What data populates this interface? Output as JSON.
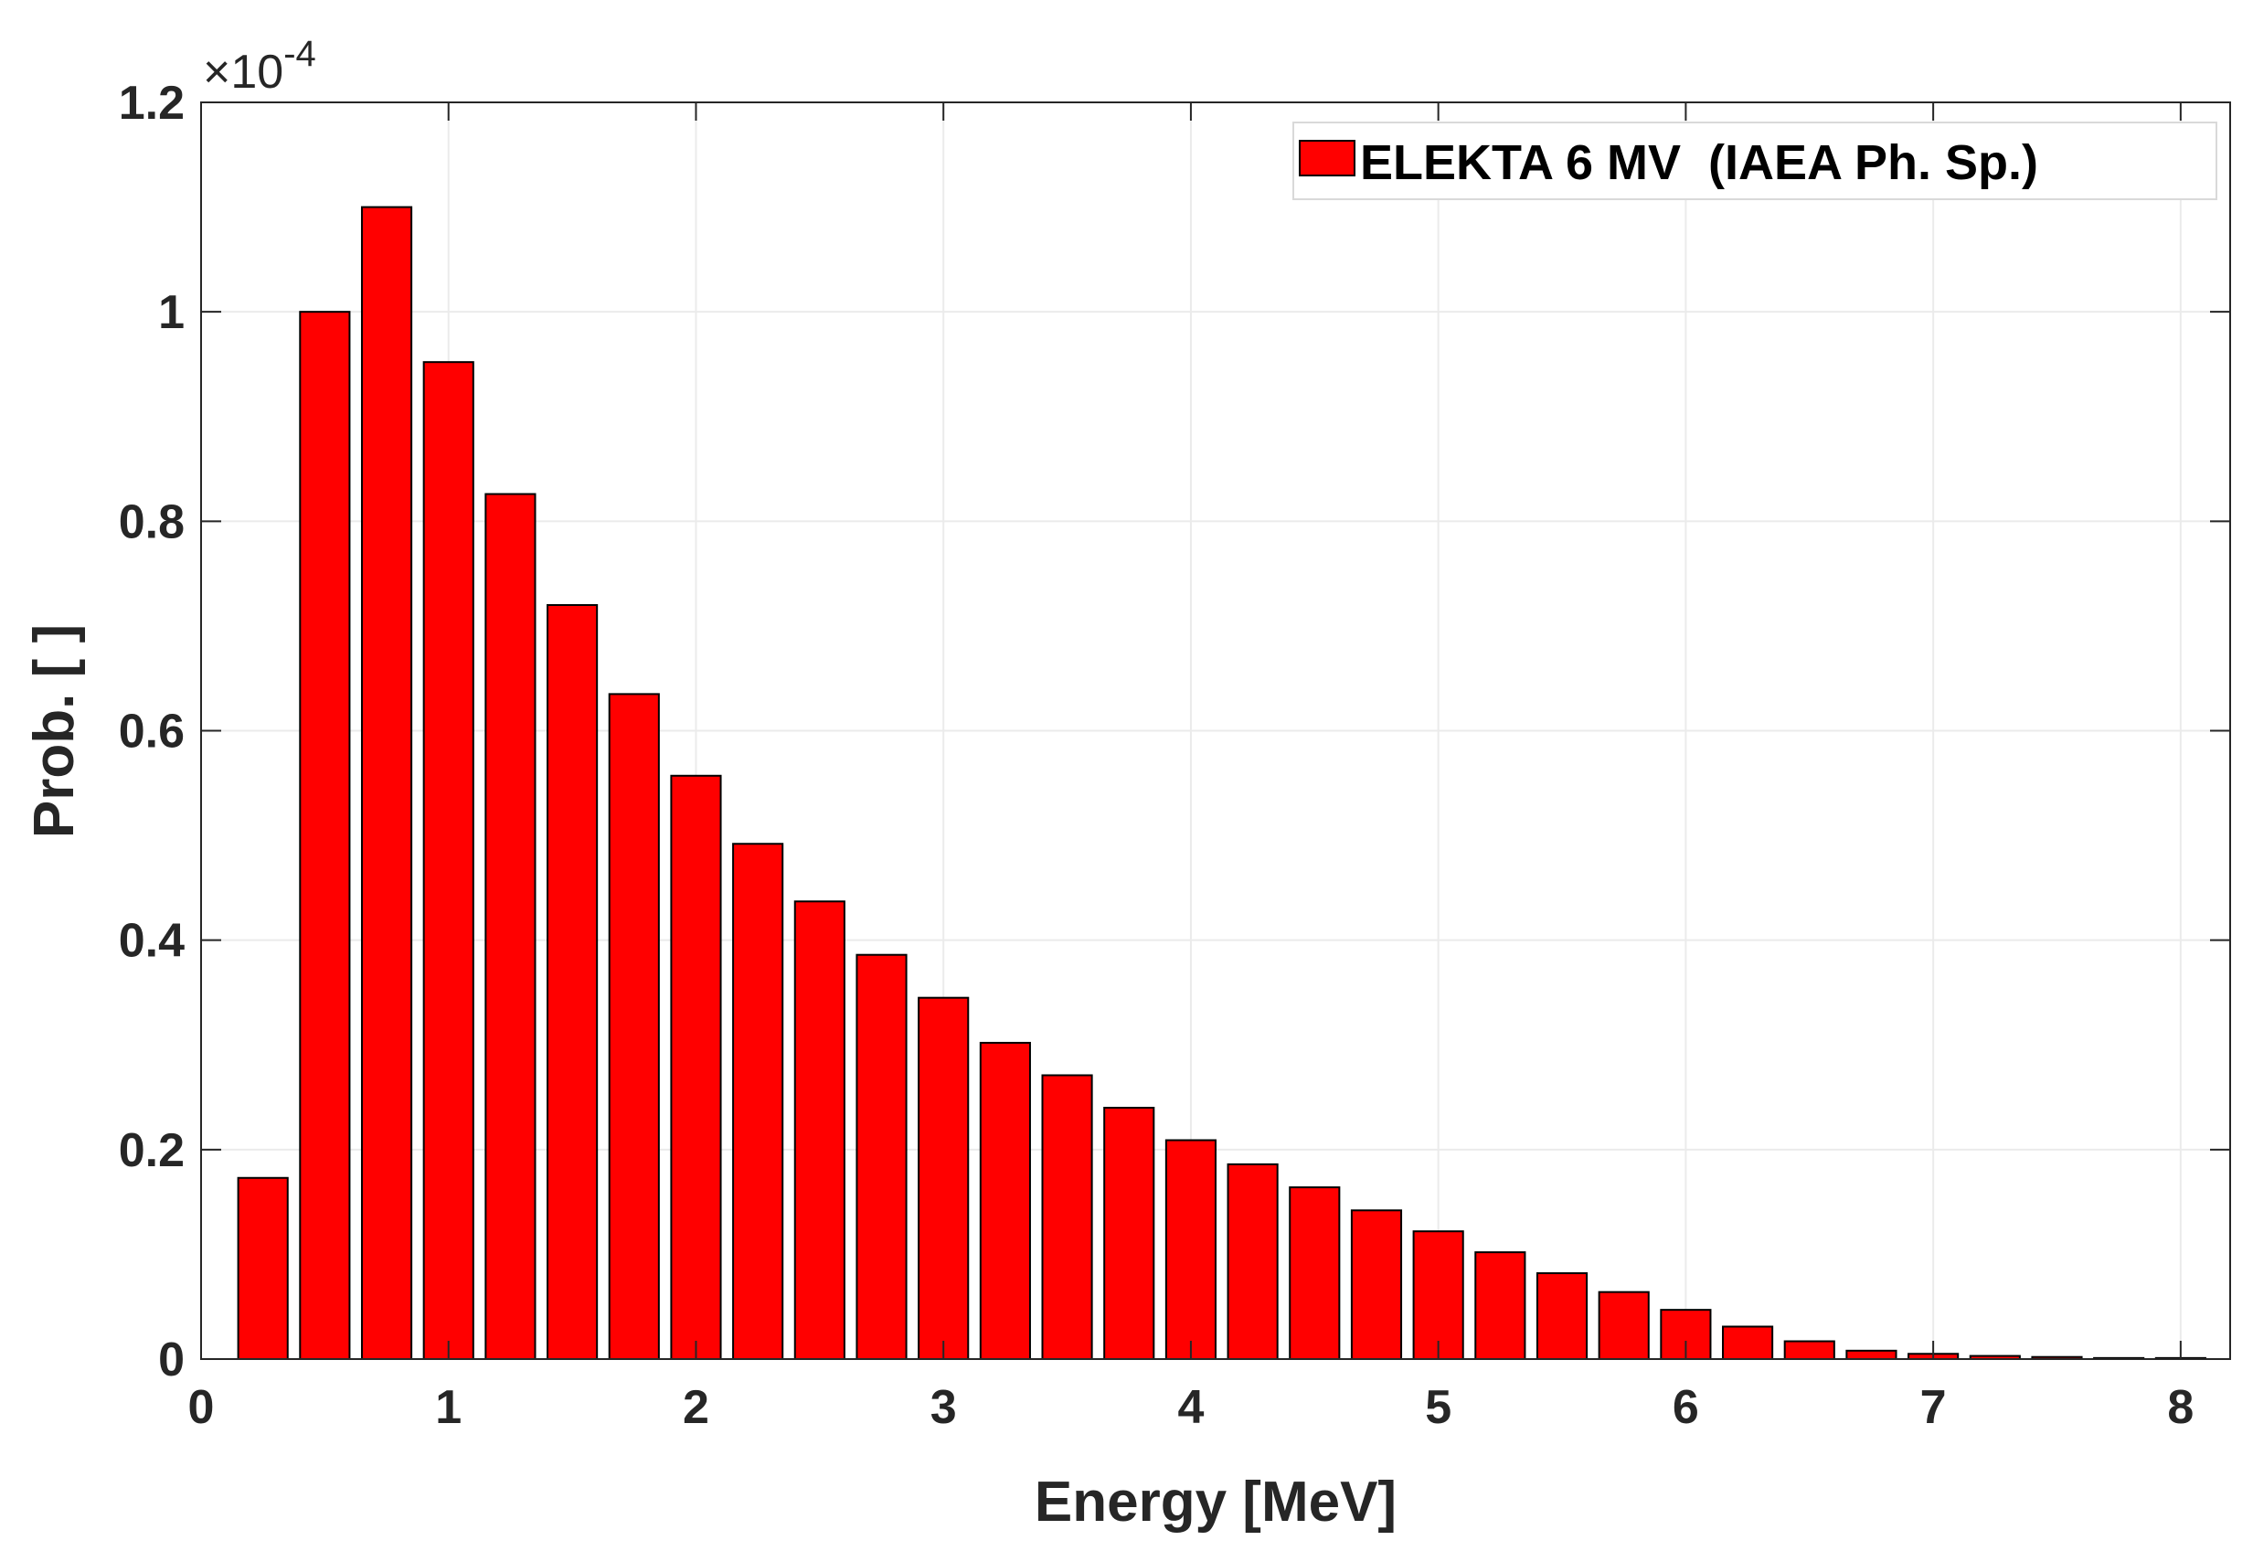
{
  "chart_data": {
    "type": "bar",
    "xlabel": "Energy [MeV]",
    "ylabel": "Prob. [ ]",
    "xlim": [
      0,
      8.2
    ],
    "ylim": [
      0,
      1.2
    ],
    "y_exponent_text": "×10",
    "y_exponent_power": "-4",
    "xticks": [
      0,
      1,
      2,
      3,
      4,
      5,
      6,
      7,
      8
    ],
    "xtick_labels": [
      "0",
      "1",
      "2",
      "3",
      "4",
      "5",
      "6",
      "7",
      "8"
    ],
    "yticks": [
      0,
      0.2,
      0.4,
      0.6,
      0.8,
      1.0,
      1.2
    ],
    "ytick_labels": [
      "0",
      "0.2",
      "0.4",
      "0.6",
      "0.8",
      "1",
      "1.2"
    ],
    "grid": true,
    "legend_position": "top-right",
    "bar_color": "#ff0000",
    "bar_edge_color": "#000000",
    "series": [
      {
        "name": "ELEKTA 6 MV  (IAEA Ph. Sp.)",
        "x": [
          0.25,
          0.5,
          0.75,
          1.0,
          1.25,
          1.5,
          1.75,
          2.0,
          2.25,
          2.5,
          2.75,
          3.0,
          3.25,
          3.5,
          3.75,
          4.0,
          4.25,
          4.5,
          4.75,
          5.0,
          5.25,
          5.5,
          5.75,
          6.0,
          6.25,
          6.5,
          6.75,
          7.0,
          7.25,
          7.5,
          7.75,
          8.0
        ],
        "values": [
          0.173,
          1.0,
          1.1,
          0.952,
          0.826,
          0.72,
          0.635,
          0.557,
          0.492,
          0.437,
          0.386,
          0.345,
          0.302,
          0.271,
          0.24,
          0.209,
          0.186,
          0.164,
          0.142,
          0.122,
          0.102,
          0.082,
          0.064,
          0.047,
          0.031,
          0.017,
          0.008,
          0.005,
          0.003,
          0.002,
          0.001,
          0.001
        ]
      }
    ]
  }
}
